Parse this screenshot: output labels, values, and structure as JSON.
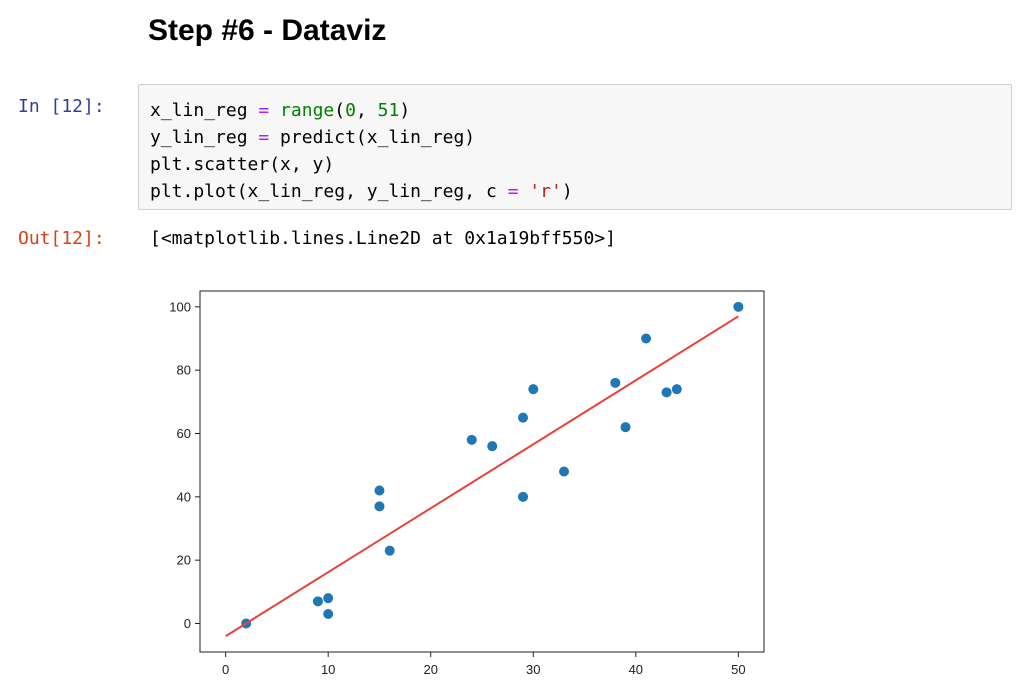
{
  "heading": "Step #6 - Dataviz",
  "input_prompt": "In [12]:",
  "code": [
    [
      {
        "text": "x_lin_reg ",
        "color": "#000000"
      },
      {
        "text": "=",
        "color": "#aa22ff"
      },
      {
        "text": " range",
        "color": "#008000"
      },
      {
        "text": "(",
        "color": "#000000"
      },
      {
        "text": "0",
        "color": "#008000"
      },
      {
        "text": ", ",
        "color": "#000000"
      },
      {
        "text": "51",
        "color": "#008000"
      },
      {
        "text": ")",
        "color": "#000000"
      }
    ],
    [
      {
        "text": "y_lin_reg ",
        "color": "#000000"
      },
      {
        "text": "=",
        "color": "#aa22ff"
      },
      {
        "text": " predict(x_lin_reg)",
        "color": "#000000"
      }
    ],
    [
      {
        "text": "plt.scatter(x, y)",
        "color": "#000000"
      }
    ],
    [
      {
        "text": "plt.plot(x_lin_reg, y_lin_reg, c ",
        "color": "#000000"
      },
      {
        "text": "=",
        "color": "#aa22ff"
      },
      {
        "text": " 'r'",
        "color": "#ba2121"
      },
      {
        "text": ")",
        "color": "#000000"
      }
    ]
  ],
  "output_prompt": "Out[12]:",
  "output_text": "[<matplotlib.lines.Line2D at 0x1a19bff550>]",
  "chart_data": {
    "type": "scatter",
    "xlim": [
      -2.5,
      52.5
    ],
    "ylim": [
      -9,
      105
    ],
    "xticks": [
      0,
      10,
      20,
      30,
      40,
      50
    ],
    "yticks": [
      0,
      20,
      40,
      60,
      80,
      100
    ],
    "series": [
      {
        "type": "scatter",
        "color": "#1f77b4",
        "x": [
          2,
          9,
          10,
          10,
          15,
          15,
          16,
          24,
          26,
          29,
          29,
          30,
          33,
          38,
          39,
          41,
          43,
          44,
          50
        ],
        "values": [
          0,
          7,
          8,
          3,
          42,
          37,
          23,
          58,
          56,
          65,
          40,
          74,
          48,
          76,
          62,
          90,
          73,
          74,
          100
        ]
      },
      {
        "type": "line",
        "color": "#e8413a",
        "x": [
          0,
          50
        ],
        "values": [
          -4,
          97
        ]
      }
    ]
  }
}
